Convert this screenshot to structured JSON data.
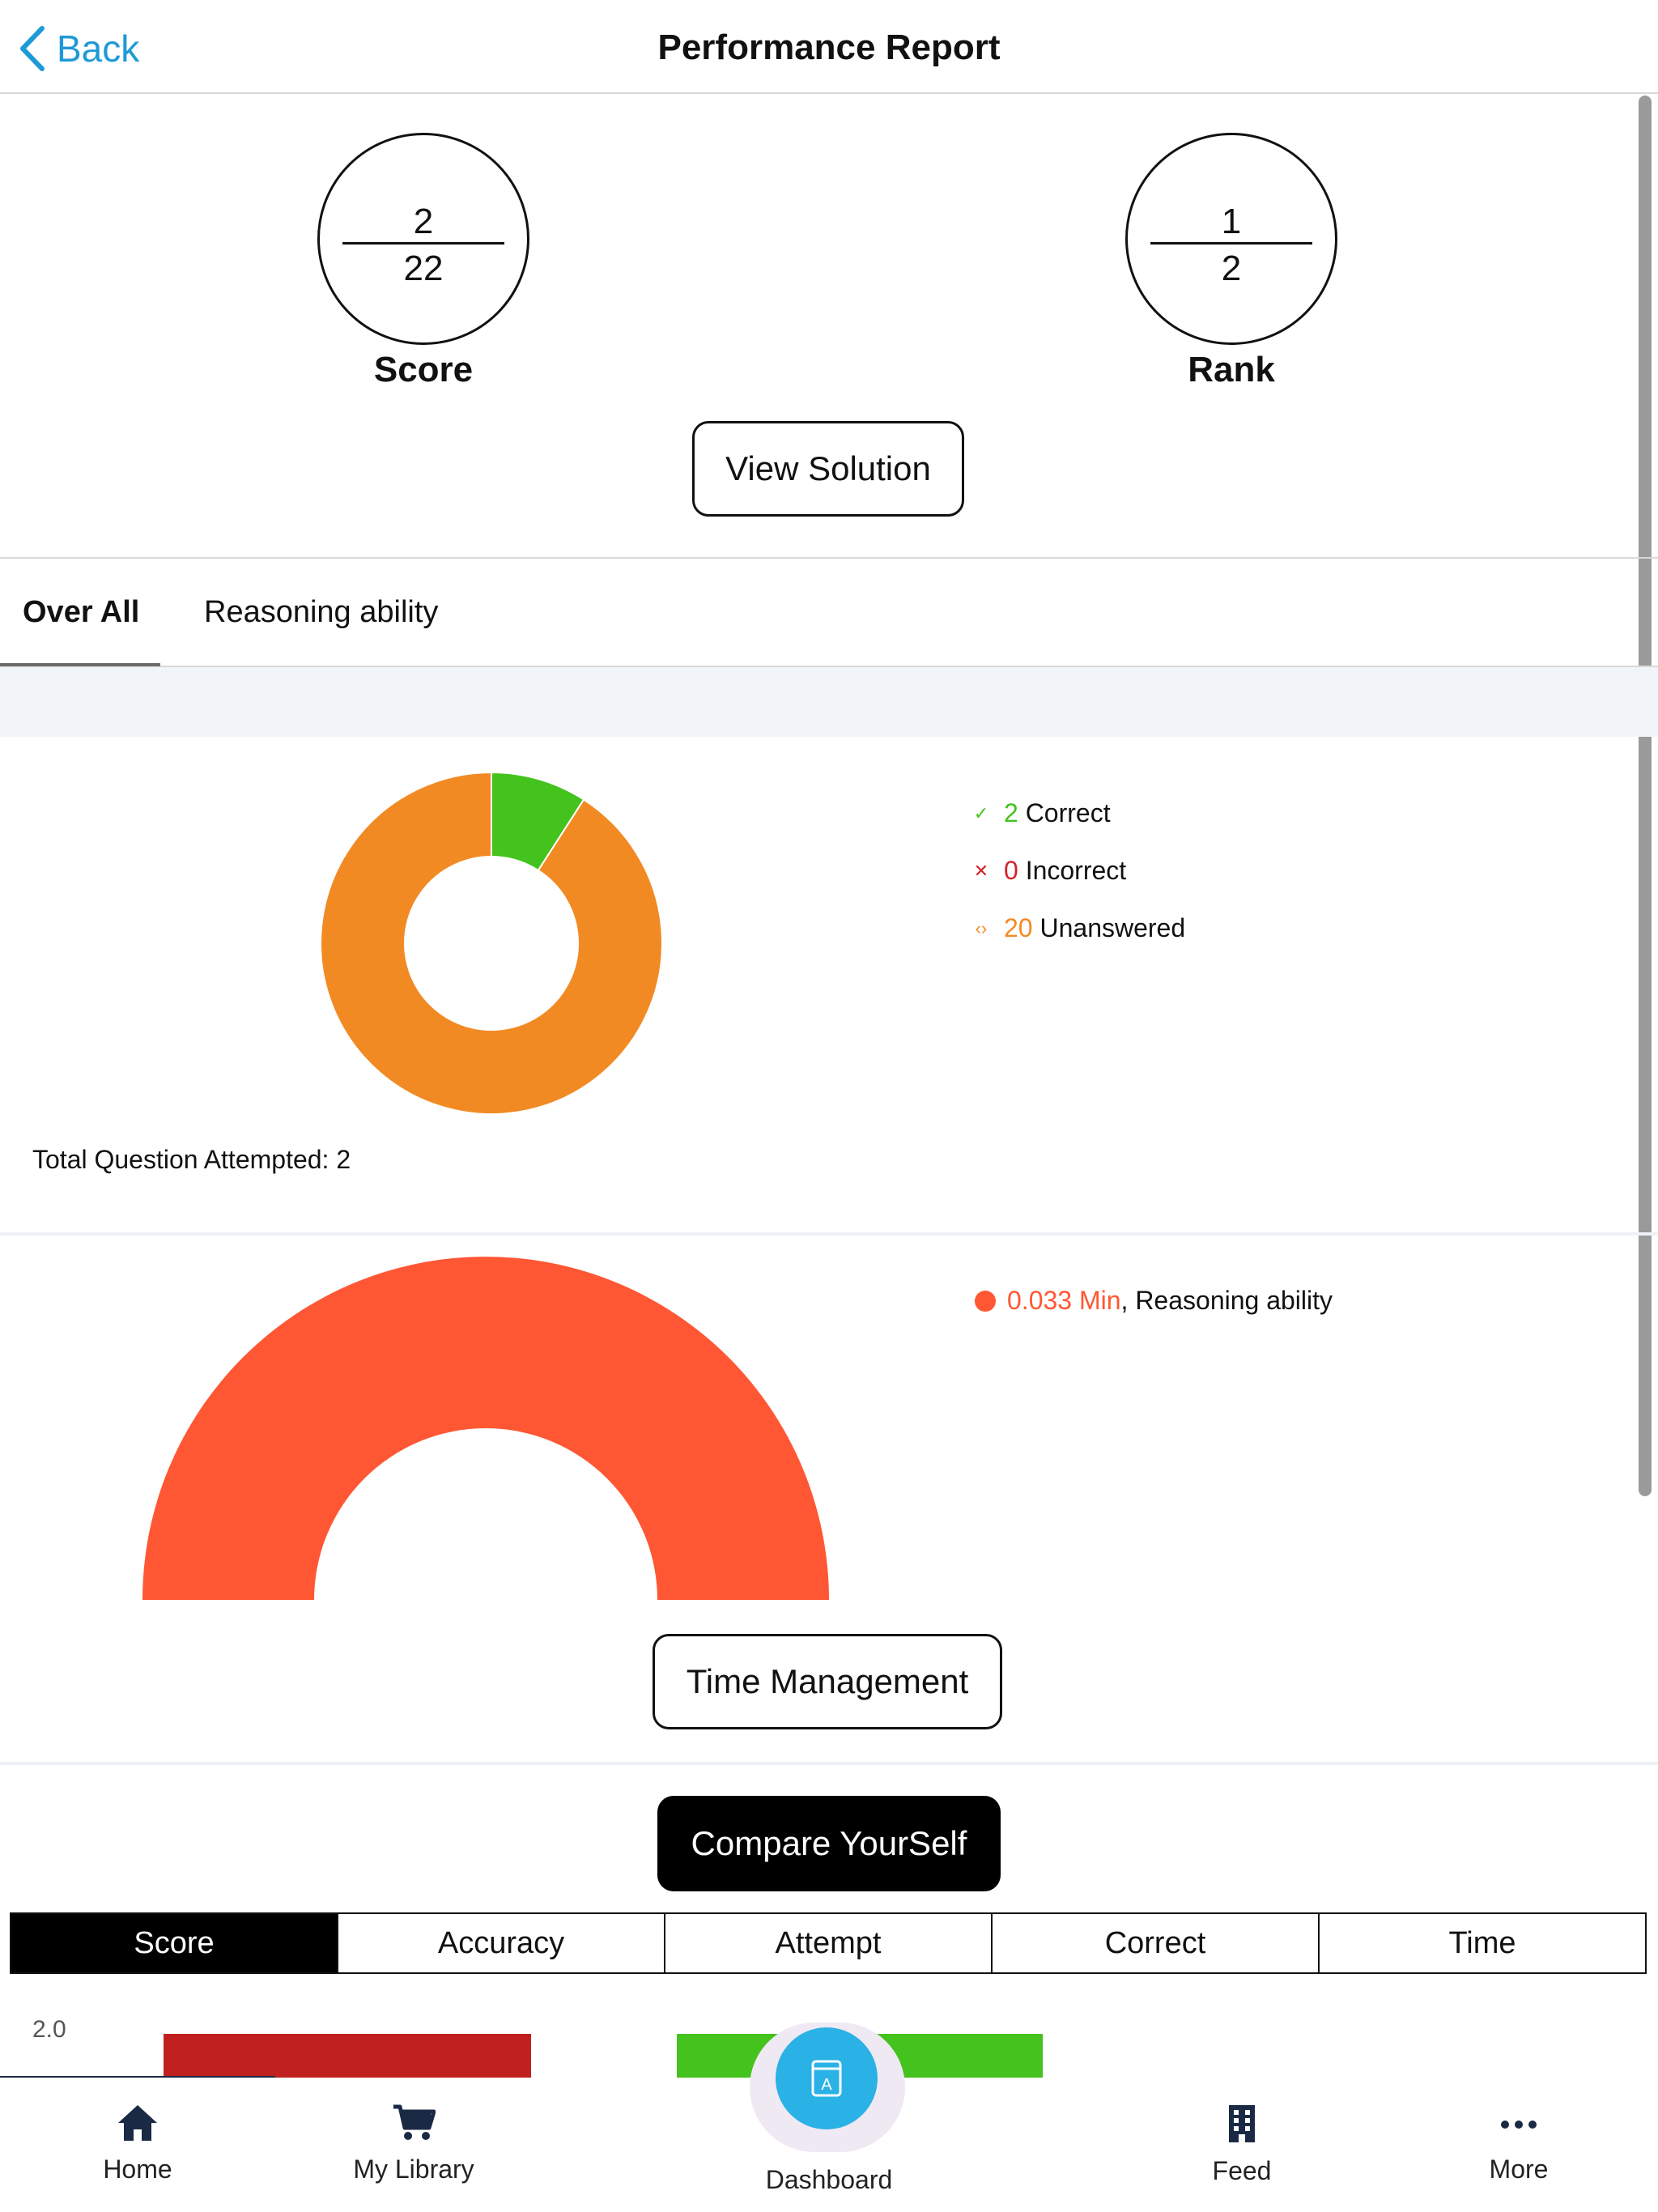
{
  "nav": {
    "back_label": "Back",
    "title": "Performance Report"
  },
  "score": {
    "numerator": "2",
    "denominator": "22",
    "label": "Score"
  },
  "rank": {
    "numerator": "1",
    "denominator": "2",
    "label": "Rank"
  },
  "view_solution_label": "View Solution",
  "tabs": [
    {
      "label": "Over All",
      "active": true
    },
    {
      "label": "Reasoning ability",
      "active": false
    }
  ],
  "summary": {
    "legend": [
      {
        "value": "2",
        "label": "Correct",
        "color": "#44c21d",
        "icon": "check-icon"
      },
      {
        "value": "0",
        "label": "Incorrect",
        "color": "#d0242b",
        "icon": "cross-icon"
      },
      {
        "value": "20",
        "label": "Unanswered",
        "color": "#f28a24",
        "icon": "code-icon"
      }
    ],
    "total_attempted_text": "Total Question Attempted: 2"
  },
  "time": {
    "value_text": "0.033 Min",
    "section_text": ", Reasoning ability",
    "color": "#ff5733",
    "time_management_label": "Time Management"
  },
  "compare": {
    "button_label": "Compare YourSelf",
    "segments": [
      {
        "label": "Score",
        "active": true
      },
      {
        "label": "Accuracy",
        "active": false
      },
      {
        "label": "Attempt",
        "active": false
      },
      {
        "label": "Correct",
        "active": false
      },
      {
        "label": "Time",
        "active": false
      }
    ],
    "y_tick_visible": "2.0",
    "bar_colors": [
      "#c0201f",
      "#44c21d"
    ]
  },
  "tabbar": {
    "items": [
      {
        "label": "Home",
        "icon": "home-icon"
      },
      {
        "label": "My Library",
        "icon": "cart-icon"
      },
      {
        "label": "Dashboard",
        "icon": "book-icon"
      },
      {
        "label": "Feed",
        "icon": "building-icon"
      },
      {
        "label": "More",
        "icon": "more-icon"
      }
    ]
  },
  "chart_data": [
    {
      "type": "pie",
      "title": "",
      "categories": [
        "Correct",
        "Incorrect",
        "Unanswered"
      ],
      "values": [
        2,
        0,
        20
      ],
      "colors": [
        "#44c21d",
        "#d0242b",
        "#f28a24"
      ],
      "donut": true
    },
    {
      "type": "pie",
      "title": "",
      "categories": [
        "Reasoning ability"
      ],
      "values": [
        0.033
      ],
      "unit": "Min",
      "colors": [
        "#ff5733"
      ],
      "half_donut": true
    }
  ]
}
